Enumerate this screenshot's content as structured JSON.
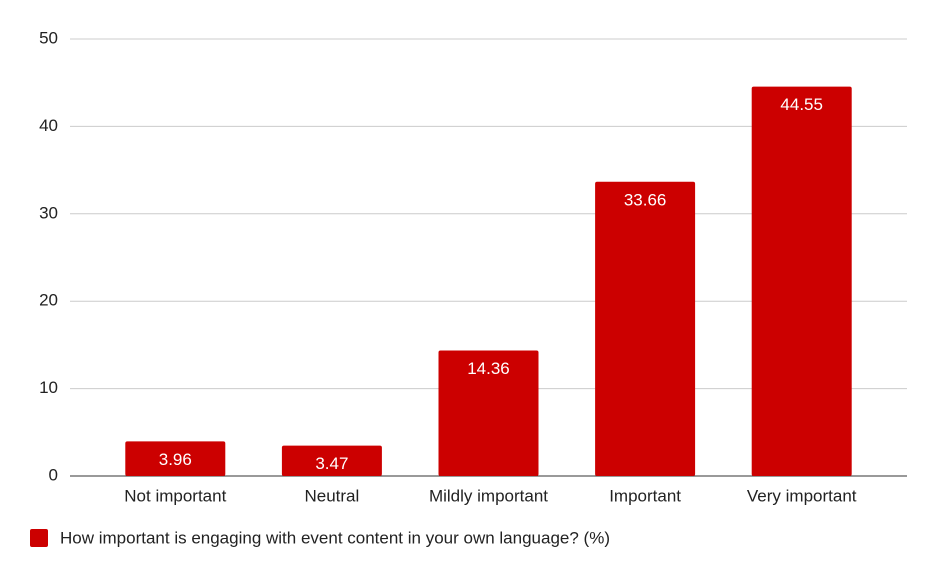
{
  "chart_data": {
    "type": "bar",
    "categories": [
      "Not important",
      "Neutral",
      "Mildly important",
      "Important",
      "Very important"
    ],
    "series": [
      {
        "name": "How important is engaging with event content in your own language? (%)",
        "color": "#cc0000",
        "values": [
          3.96,
          3.47,
          14.36,
          33.66,
          44.55
        ]
      }
    ],
    "ylim": [
      0,
      50
    ],
    "yticks": [
      0,
      10,
      20,
      30,
      40,
      50
    ],
    "grid": true,
    "legend": "bottom-left",
    "data_labels": true
  }
}
